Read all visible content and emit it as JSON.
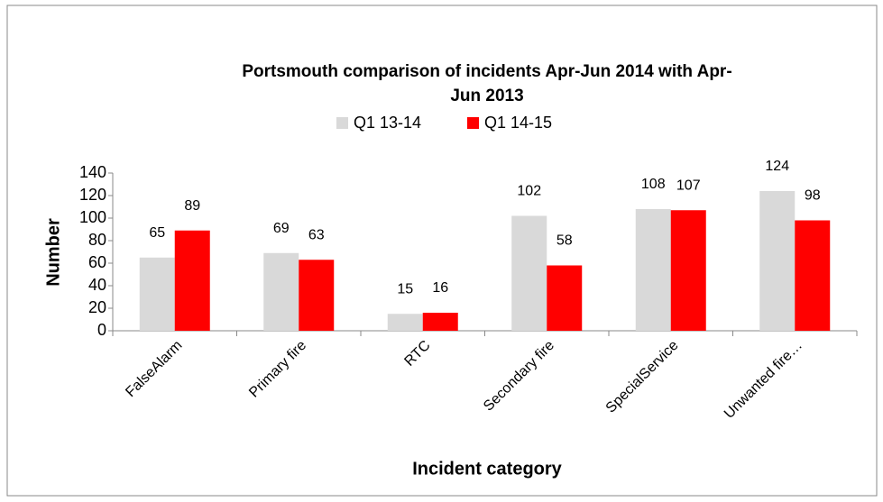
{
  "chart_data": {
    "type": "bar",
    "title": [
      "Portsmouth comparison of incidents Apr-Jun 2014 with Apr-",
      "Jun 2013"
    ],
    "x_label": "Incident category",
    "y_label": "Number",
    "categories": [
      "FalseAlarm",
      "Primary fire",
      "RTC",
      "Secondary fire",
      "SpecialService",
      "Unwanted fire…"
    ],
    "series": [
      {
        "name": "Q1 13-14",
        "color": "#d9d9d9",
        "values": [
          65,
          69,
          15,
          102,
          108,
          124
        ]
      },
      {
        "name": "Q1 14-15",
        "color": "#ff0000",
        "values": [
          89,
          63,
          16,
          58,
          107,
          98
        ]
      }
    ],
    "ylim": [
      0,
      140
    ],
    "yticks": [
      0,
      20,
      40,
      60,
      80,
      100,
      120,
      140
    ],
    "grid": false,
    "legend": "top"
  }
}
